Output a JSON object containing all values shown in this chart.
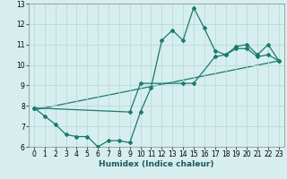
{
  "title": "",
  "xlabel": "Humidex (Indice chaleur)",
  "ylabel": "",
  "background_color": "#d7eeee",
  "line_color": "#1a7a6e",
  "xlim": [
    -0.5,
    23.5
  ],
  "ylim": [
    6,
    13
  ],
  "yticks": [
    6,
    7,
    8,
    9,
    10,
    11,
    12,
    13
  ],
  "xticks": [
    0,
    1,
    2,
    3,
    4,
    5,
    6,
    7,
    8,
    9,
    10,
    11,
    12,
    13,
    14,
    15,
    16,
    17,
    18,
    19,
    20,
    21,
    22,
    23
  ],
  "series1_x": [
    0,
    1,
    2,
    3,
    4,
    5,
    6,
    7,
    8,
    9,
    10,
    11,
    12,
    13,
    14,
    15,
    16,
    17,
    18,
    19,
    20,
    21,
    22,
    23
  ],
  "series1_y": [
    7.9,
    7.5,
    7.1,
    6.6,
    6.5,
    6.5,
    6.0,
    6.3,
    6.3,
    6.2,
    7.7,
    8.9,
    11.2,
    11.7,
    11.2,
    12.8,
    11.8,
    10.7,
    10.5,
    10.9,
    11.0,
    10.5,
    11.0,
    10.2
  ],
  "series2_x": [
    0,
    9,
    10,
    14,
    15,
    17,
    18,
    19,
    20,
    21,
    22,
    23
  ],
  "series2_y": [
    7.9,
    7.7,
    9.1,
    9.1,
    9.1,
    10.4,
    10.5,
    10.8,
    10.8,
    10.4,
    10.5,
    10.2
  ],
  "series3_x": [
    0,
    23
  ],
  "series3_y": [
    7.8,
    10.2
  ],
  "grid_color": "#b8dada",
  "tick_fontsize": 5.5,
  "xlabel_fontsize": 6.5
}
